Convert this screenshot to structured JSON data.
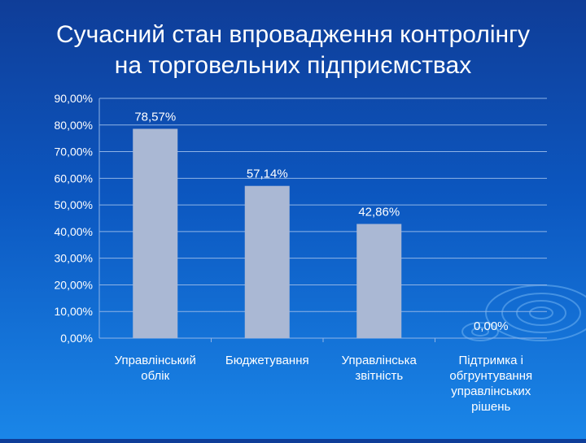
{
  "slide": {
    "title_line1": "Сучасний стан впровадження контролінгу",
    "title_line2": "на торговельних підприємствах"
  },
  "colors": {
    "background_top": "#0f3d98",
    "background_bottom": "#1a86e8",
    "bar_fill": "#aab8d4",
    "gridline": "#8fb4e6",
    "text": "#ffffff"
  },
  "chart_data": {
    "type": "bar",
    "categories": [
      [
        "Управлінський",
        "облік"
      ],
      [
        "Бюджетування"
      ],
      [
        "Управлінська",
        "звітність"
      ],
      [
        "Підтримка і",
        "обгрунтування",
        "управлінських",
        "рішень"
      ]
    ],
    "values": [
      78.57,
      57.14,
      42.86,
      0.0
    ],
    "data_labels": [
      "78,57%",
      "57,14%",
      "42,86%",
      "0,00%"
    ],
    "ylim": [
      0,
      90
    ],
    "yticks": [
      0,
      10,
      20,
      30,
      40,
      50,
      60,
      70,
      80,
      90
    ],
    "ytick_labels": [
      "0,00%",
      "10,00%",
      "20,00%",
      "30,00%",
      "40,00%",
      "50,00%",
      "60,00%",
      "70,00%",
      "80,00%",
      "90,00%"
    ],
    "grid": true,
    "legend": "none"
  }
}
